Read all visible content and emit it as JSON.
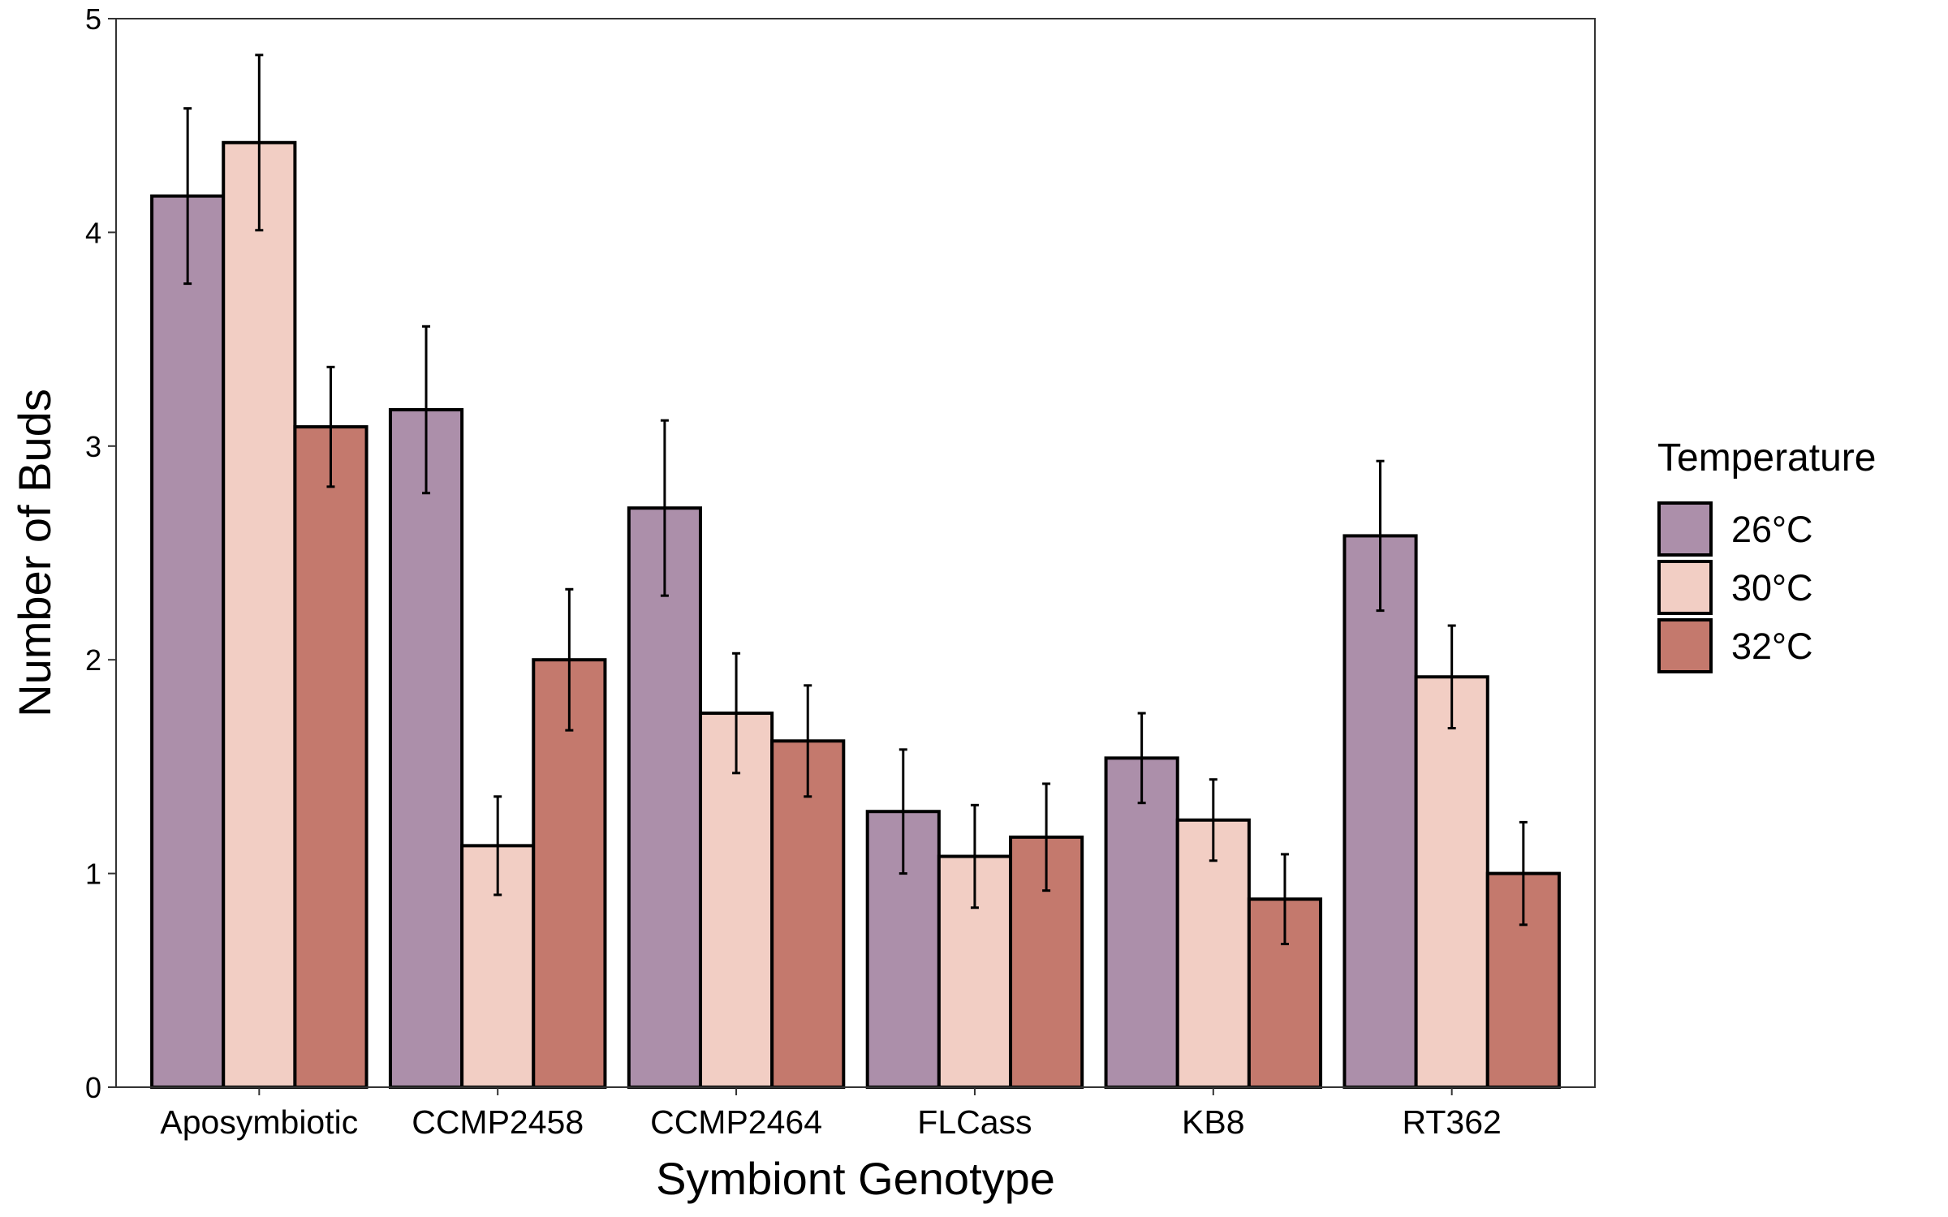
{
  "chart_data": {
    "type": "bar",
    "xlabel": "Symbiont Genotype",
    "ylabel": "Number of Buds",
    "ylim": [
      0,
      5
    ],
    "yticks": [
      0,
      1,
      2,
      3,
      4,
      5
    ],
    "grid": false,
    "legend": {
      "title": "Temperature",
      "placement": "right"
    },
    "categories": [
      "Aposymbiotic",
      "CCMP2458",
      "CCMP2464",
      "FLCass",
      "KB8",
      "RT362"
    ],
    "series": [
      {
        "name": "26°C",
        "color": "#AC8FAA",
        "values": [
          4.17,
          3.17,
          2.71,
          1.29,
          1.54,
          2.58
        ],
        "error": [
          0.41,
          0.39,
          0.41,
          0.29,
          0.21,
          0.35
        ]
      },
      {
        "name": "30°C",
        "color": "#F2CEC4",
        "values": [
          4.42,
          1.13,
          1.75,
          1.08,
          1.25,
          1.92
        ],
        "error": [
          0.41,
          0.23,
          0.28,
          0.24,
          0.19,
          0.24
        ]
      },
      {
        "name": "32°C",
        "color": "#C4796D",
        "values": [
          3.09,
          2.0,
          1.62,
          1.17,
          0.88,
          1.0
        ],
        "error": [
          0.28,
          0.33,
          0.26,
          0.25,
          0.21,
          0.24
        ]
      }
    ]
  }
}
